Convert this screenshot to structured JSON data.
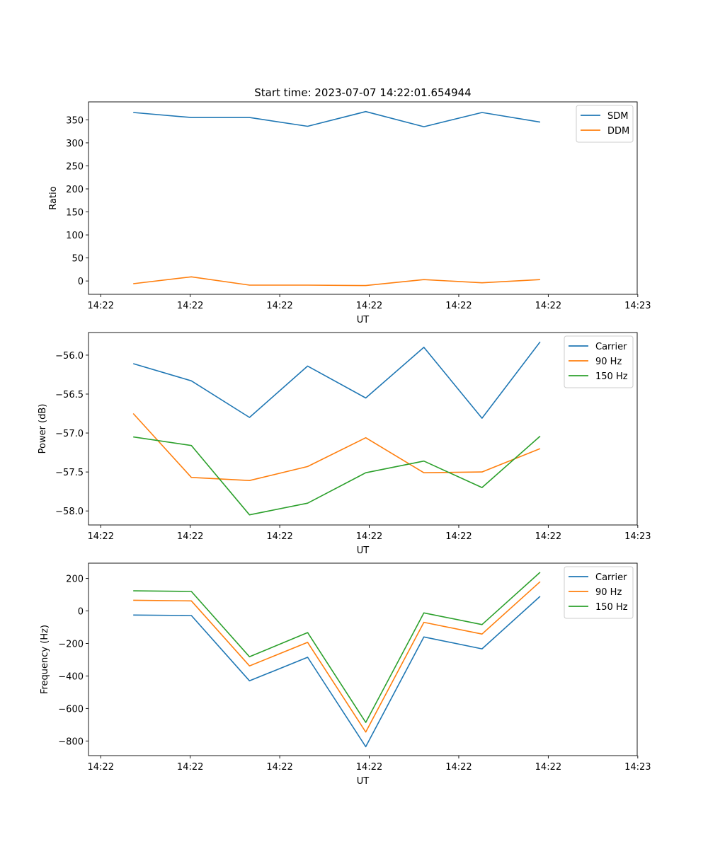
{
  "chart_data": [
    {
      "type": "line",
      "title": "Start time: 2023-07-07 14:22:01.654944",
      "xlabel": "UT",
      "ylabel": "Ratio",
      "x": [
        1,
        2,
        3,
        4,
        5,
        6,
        7,
        8
      ],
      "xlim": [
        0.23,
        9.67
      ],
      "xticks": [
        {
          "x": 0.44,
          "label": "14:22"
        },
        {
          "x": 1.98,
          "label": "14:22"
        },
        {
          "x": 3.52,
          "label": "14:22"
        },
        {
          "x": 5.06,
          "label": "14:22"
        },
        {
          "x": 6.6,
          "label": "14:22"
        },
        {
          "x": 8.14,
          "label": "14:22"
        },
        {
          "x": 9.68,
          "label": "14:23"
        }
      ],
      "ylim": [
        -29,
        389
      ],
      "yticks": [
        0,
        50,
        100,
        150,
        200,
        250,
        300,
        350
      ],
      "legend": "top-right",
      "series": [
        {
          "name": "SDM",
          "color": "#1f77b4",
          "values": [
            366,
            355,
            355,
            336,
            368,
            335,
            366,
            345
          ]
        },
        {
          "name": "DDM",
          "color": "#ff7f0e",
          "values": [
            -6,
            9,
            -9,
            -9,
            -10,
            3,
            -4,
            3
          ]
        }
      ]
    },
    {
      "type": "line",
      "title": "",
      "xlabel": "UT",
      "ylabel": "Power (dB)",
      "x": [
        1,
        2,
        3,
        4,
        5,
        6,
        7,
        8
      ],
      "xlim": [
        0.23,
        9.67
      ],
      "xticks": [
        {
          "x": 0.44,
          "label": "14:22"
        },
        {
          "x": 1.98,
          "label": "14:22"
        },
        {
          "x": 3.52,
          "label": "14:22"
        },
        {
          "x": 5.06,
          "label": "14:22"
        },
        {
          "x": 6.6,
          "label": "14:22"
        },
        {
          "x": 8.14,
          "label": "14:22"
        },
        {
          "x": 9.68,
          "label": "14:23"
        }
      ],
      "ylim": [
        -58.18,
        -55.71
      ],
      "yticks": [
        -58.0,
        -57.5,
        -57.0,
        -56.5,
        -56.0
      ],
      "ytick_labels": [
        "−58.0",
        "−57.5",
        "−57.0",
        "−56.5",
        "−56.0"
      ],
      "legend": "top-right",
      "series": [
        {
          "name": "Carrier",
          "color": "#1f77b4",
          "values": [
            -56.11,
            -56.33,
            -56.8,
            -56.14,
            -56.55,
            -55.9,
            -56.81,
            -55.83
          ]
        },
        {
          "name": "90 Hz",
          "color": "#ff7f0e",
          "values": [
            -56.75,
            -57.57,
            -57.61,
            -57.43,
            -57.06,
            -57.51,
            -57.5,
            -57.2
          ]
        },
        {
          "name": "150 Hz",
          "color": "#2ca02c",
          "values": [
            -57.05,
            -57.16,
            -58.05,
            -57.9,
            -57.51,
            -57.36,
            -57.7,
            -57.04
          ]
        }
      ]
    },
    {
      "type": "line",
      "title": "",
      "xlabel": "UT",
      "ylabel": "Frequency (Hz)",
      "x": [
        1,
        2,
        3,
        4,
        5,
        6,
        7,
        8
      ],
      "xlim": [
        0.23,
        9.67
      ],
      "xticks": [
        {
          "x": 0.44,
          "label": "14:22"
        },
        {
          "x": 1.98,
          "label": "14:22"
        },
        {
          "x": 3.52,
          "label": "14:22"
        },
        {
          "x": 5.06,
          "label": "14:22"
        },
        {
          "x": 6.6,
          "label": "14:22"
        },
        {
          "x": 8.14,
          "label": "14:22"
        },
        {
          "x": 9.68,
          "label": "14:23"
        }
      ],
      "ylim": [
        -890,
        294
      ],
      "yticks": [
        -800,
        -600,
        -400,
        -200,
        0,
        200
      ],
      "ytick_labels": [
        "−800",
        "−600",
        "−400",
        "−200",
        "0",
        "200"
      ],
      "legend": "top-right",
      "series": [
        {
          "name": "Carrier",
          "color": "#1f77b4",
          "values": [
            -25,
            -28,
            -430,
            -285,
            -835,
            -160,
            -233,
            90
          ]
        },
        {
          "name": "90 Hz",
          "color": "#ff7f0e",
          "values": [
            66,
            62,
            -338,
            -193,
            -745,
            -70,
            -142,
            180
          ]
        },
        {
          "name": "150 Hz",
          "color": "#2ca02c",
          "values": [
            124,
            120,
            -282,
            -133,
            -686,
            -12,
            -84,
            238
          ]
        }
      ]
    }
  ]
}
